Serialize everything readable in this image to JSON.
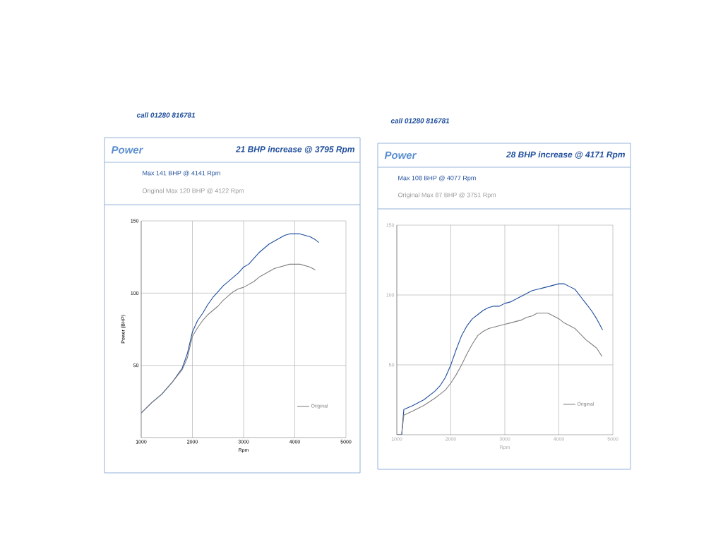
{
  "chart_data": [
    {
      "type": "line",
      "title": "Power",
      "subtitle": "21 BHP increase @ 3795 Rpm",
      "xlabel": "Rpm",
      "ylabel": "Power (BHP)",
      "annotations": [
        "Max 141 BHP @ 4141 Rpm",
        "Original Max 120 BHP @ 4122 Rpm",
        "call 01280 816781"
      ],
      "xlim": [
        1000,
        5000
      ],
      "ylim": [
        0,
        150
      ],
      "xticks": [
        1000,
        2000,
        3000,
        4000,
        5000
      ],
      "yticks": [
        50,
        100,
        150
      ],
      "grid": true,
      "legend": "bottom right",
      "series": [
        {
          "color": "#1f4e9c",
          "x": [
            1000,
            1200,
            1400,
            1600,
            1800,
            1900,
            2000,
            2100,
            2200,
            2300,
            2400,
            2500,
            2600,
            2700,
            2800,
            2900,
            3000,
            3100,
            3200,
            3300,
            3400,
            3500,
            3600,
            3700,
            3800,
            3900,
            4000,
            4100,
            4200,
            4300,
            4400,
            4470
          ],
          "values": [
            17,
            24,
            30,
            38,
            48,
            58,
            73,
            81,
            86,
            92,
            97,
            101,
            105,
            108,
            111,
            114,
            118,
            120,
            124,
            128,
            131,
            134,
            136,
            138,
            140,
            141,
            141,
            141,
            140,
            139,
            137,
            135
          ]
        },
        {
          "name": "Original",
          "color": "#808080",
          "x": [
            1000,
            1200,
            1400,
            1600,
            1800,
            1900,
            2000,
            2100,
            2200,
            2300,
            2400,
            2500,
            2600,
            2700,
            2800,
            2900,
            3000,
            3100,
            3200,
            3300,
            3400,
            3500,
            3600,
            3700,
            3800,
            3900,
            4000,
            4100,
            4200,
            4300,
            4400
          ],
          "values": [
            17,
            24,
            30,
            38,
            47,
            55,
            70,
            76,
            81,
            85,
            88,
            91,
            95,
            98,
            101,
            103,
            104,
            106,
            108,
            111,
            113,
            115,
            117,
            118,
            119,
            120,
            120,
            120,
            119,
            118,
            116
          ]
        }
      ]
    },
    {
      "type": "line",
      "title": "Power",
      "subtitle": "28 BHP increase @ 4171 Rpm",
      "xlabel": "Rpm",
      "annotations": [
        "Max 108 BHP @ 4077 Rpm",
        "Original Max 87 BHP @ 3751 Rpm",
        "call 01280 816781"
      ],
      "xlim": [
        1000,
        5000
      ],
      "ylim": [
        0,
        150
      ],
      "xticks": [
        1000,
        2000,
        3000,
        4000,
        5000
      ],
      "yticks": [
        50,
        100,
        150
      ],
      "grid": true,
      "legend": "bottom right",
      "series": [
        {
          "color": "#1f4e9c",
          "x": [
            1000,
            1090,
            1130,
            1300,
            1500,
            1700,
            1800,
            1900,
            2000,
            2100,
            2200,
            2300,
            2400,
            2500,
            2600,
            2700,
            2800,
            2900,
            3000,
            3100,
            3200,
            3300,
            3400,
            3500,
            3600,
            3700,
            3800,
            3900,
            4000,
            4100,
            4200,
            4300,
            4400,
            4500,
            4600,
            4700,
            4810
          ],
          "values": [
            0,
            0,
            18,
            21,
            25,
            31,
            35,
            41,
            50,
            61,
            71,
            78,
            83,
            86,
            89,
            91,
            92,
            92,
            94,
            95,
            97,
            99,
            101,
            103,
            104,
            105,
            106,
            107,
            108,
            108,
            106,
            104,
            99,
            94,
            89,
            83,
            75
          ]
        },
        {
          "name": "Original",
          "color": "#808080",
          "x": [
            1000,
            1090,
            1130,
            1300,
            1500,
            1700,
            1800,
            1900,
            2000,
            2100,
            2200,
            2300,
            2400,
            2500,
            2600,
            2700,
            2800,
            2900,
            3000,
            3100,
            3200,
            3300,
            3400,
            3500,
            3600,
            3700,
            3800,
            3900,
            4000,
            4100,
            4200,
            4300,
            4400,
            4500,
            4600,
            4700,
            4800
          ],
          "values": [
            0,
            0,
            14,
            17,
            21,
            26,
            29,
            32,
            37,
            43,
            50,
            58,
            65,
            71,
            74,
            76,
            77,
            78,
            79,
            80,
            81,
            82,
            84,
            85,
            87,
            87,
            87,
            85,
            83,
            80,
            78,
            76,
            72,
            68,
            65,
            62,
            56
          ]
        }
      ]
    }
  ]
}
